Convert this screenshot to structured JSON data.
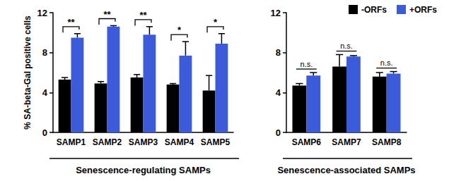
{
  "chart_data": [
    {
      "type": "bar",
      "categories": [
        "SAMP1",
        "SAMP2",
        "SAMP3",
        "SAMP4",
        "SAMP5"
      ],
      "xlabel": "Senescence-regulating SAMPs",
      "ylabel": "% SA-beta-Gal positive cells",
      "ylim": [
        0,
        12
      ],
      "yticks": [
        0,
        4,
        8,
        12
      ],
      "series": [
        {
          "name": "-ORFs",
          "color": "#000000",
          "values": [
            5.3,
            4.9,
            5.5,
            4.8,
            4.2
          ],
          "errors": [
            0.2,
            0.2,
            0.3,
            0.1,
            1.5
          ]
        },
        {
          "name": "+ORFs",
          "color": "#3b5bdb",
          "values": [
            9.5,
            10.6,
            9.8,
            7.7,
            8.9
          ],
          "errors": [
            0.4,
            0.1,
            0.8,
            1.4,
            1.0
          ]
        }
      ],
      "significance": [
        "**",
        "**",
        "**",
        "*",
        "*"
      ]
    },
    {
      "type": "bar",
      "categories": [
        "SAMP6",
        "SAMP7",
        "SAMP8"
      ],
      "xlabel": "Senescence-associated SAMPs",
      "ylim": [
        0,
        12
      ],
      "yticks": [
        0,
        4,
        8,
        12
      ],
      "legend": "top-right",
      "series": [
        {
          "name": "-ORFs",
          "color": "#000000",
          "values": [
            4.7,
            6.6,
            5.6
          ],
          "errors": [
            0.2,
            1.2,
            0.4
          ]
        },
        {
          "name": "+ORFs",
          "color": "#3b5bdb",
          "values": [
            5.7,
            7.6,
            5.9
          ],
          "errors": [
            0.3,
            0.1,
            0.2
          ]
        }
      ],
      "significance": [
        "n.s.",
        "n.s.",
        "n.s."
      ]
    }
  ]
}
